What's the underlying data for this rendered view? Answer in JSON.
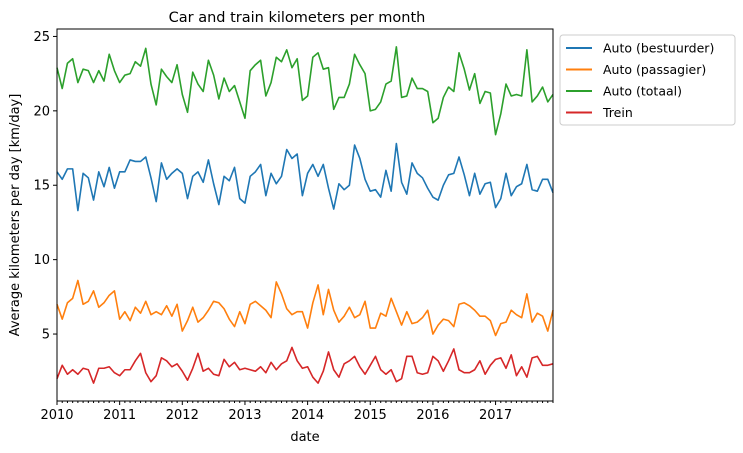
{
  "chart_data": {
    "type": "line",
    "title": "Car and train kilometers per month",
    "xlabel": "date",
    "ylabel": "Average kilometers per day [km/day]",
    "x_ticks": [
      "2010",
      "2011",
      "2012",
      "2013",
      "2014",
      "2015",
      "2016",
      "2017"
    ],
    "y_ticks": [
      5,
      10,
      15,
      20,
      25
    ],
    "xlim": [
      "2010-01",
      "2017-12"
    ],
    "ylim": [
      0.5,
      25.5
    ],
    "legend_position": "outside-top-right",
    "series": [
      {
        "name": "Auto (bestuurder)",
        "color": "#1f77b4",
        "values": [
          15.9,
          15.4,
          16.1,
          16.1,
          13.3,
          15.8,
          15.5,
          14.0,
          15.9,
          14.9,
          16.2,
          14.8,
          15.9,
          15.9,
          16.7,
          16.6,
          16.6,
          16.9,
          15.5,
          13.9,
          16.5,
          15.4,
          15.8,
          16.1,
          15.8,
          14.1,
          15.6,
          15.9,
          15.2,
          16.7,
          15.1,
          13.7,
          15.6,
          15.3,
          16.2,
          14.1,
          13.8,
          15.6,
          15.9,
          16.4,
          14.3,
          15.8,
          15.1,
          15.6,
          17.4,
          16.8,
          17.1,
          14.3,
          15.8,
          16.4,
          15.6,
          16.4,
          14.8,
          13.4,
          15.1,
          14.7,
          15.0,
          17.7,
          16.8,
          15.4,
          14.6,
          14.7,
          14.2,
          16.0,
          14.6,
          17.8,
          15.2,
          14.4,
          16.5,
          15.8,
          15.5,
          14.8,
          14.2,
          14.0,
          15.0,
          15.7,
          15.8,
          16.9,
          15.7,
          14.3,
          15.8,
          14.4,
          15.1,
          15.2,
          13.5,
          14.1,
          15.8,
          14.3,
          14.9,
          15.1,
          16.4,
          14.7,
          14.6,
          15.4,
          15.4,
          14.5
        ]
      },
      {
        "name": "Auto (passagier)",
        "color": "#ff7f0e",
        "values": [
          7.0,
          6.0,
          7.1,
          7.4,
          8.6,
          7.0,
          7.2,
          7.9,
          6.8,
          7.1,
          7.6,
          7.9,
          6.0,
          6.5,
          5.9,
          6.8,
          6.4,
          7.2,
          6.3,
          6.5,
          6.3,
          6.9,
          6.2,
          7.0,
          5.2,
          5.9,
          6.8,
          5.8,
          6.1,
          6.6,
          7.2,
          7.1,
          6.7,
          6.0,
          5.5,
          6.5,
          5.7,
          7.0,
          7.2,
          6.9,
          6.6,
          6.1,
          8.5,
          7.7,
          6.7,
          6.3,
          6.5,
          6.5,
          5.4,
          7.1,
          8.3,
          6.3,
          8.0,
          6.6,
          5.8,
          6.2,
          6.8,
          6.1,
          6.3,
          7.2,
          5.4,
          5.4,
          6.4,
          6.2,
          7.4,
          6.5,
          5.6,
          6.5,
          5.7,
          5.8,
          6.1,
          6.6,
          5.0,
          5.6,
          6.0,
          5.9,
          5.5,
          7.0,
          7.1,
          6.9,
          6.6,
          6.2,
          6.2,
          5.9,
          4.9,
          5.7,
          5.8,
          6.6,
          6.3,
          6.1,
          7.7,
          5.8,
          6.4,
          6.2,
          5.2,
          6.6
        ]
      },
      {
        "name": "Auto (totaal)",
        "color": "#2ca02c",
        "values": [
          22.9,
          21.5,
          23.2,
          23.5,
          21.9,
          22.8,
          22.7,
          21.9,
          22.7,
          22.0,
          23.8,
          22.7,
          21.9,
          22.4,
          22.5,
          23.3,
          23.0,
          24.2,
          21.8,
          20.4,
          22.8,
          22.3,
          21.9,
          23.1,
          21.1,
          19.9,
          22.6,
          21.8,
          21.3,
          23.4,
          22.4,
          20.8,
          22.2,
          21.3,
          21.7,
          20.6,
          19.5,
          22.7,
          23.1,
          23.4,
          21.0,
          21.9,
          23.6,
          23.3,
          24.1,
          22.9,
          23.5,
          20.7,
          21.0,
          23.6,
          23.9,
          22.8,
          22.9,
          20.1,
          20.9,
          20.9,
          21.8,
          23.8,
          23.1,
          22.5,
          20.0,
          20.1,
          20.6,
          21.8,
          22.0,
          24.3,
          20.9,
          21.0,
          22.2,
          21.5,
          21.5,
          21.3,
          19.2,
          19.5,
          20.9,
          21.6,
          21.3,
          23.9,
          22.8,
          21.4,
          22.5,
          20.5,
          21.3,
          21.2,
          18.4,
          19.8,
          21.8,
          21.0,
          21.1,
          21.0,
          24.1,
          20.6,
          21.0,
          21.6,
          20.6,
          21.1
        ]
      },
      {
        "name": "Trein",
        "color": "#d62728",
        "values": [
          2.0,
          2.9,
          2.3,
          2.6,
          2.3,
          2.7,
          2.6,
          1.7,
          2.7,
          2.7,
          2.8,
          2.4,
          2.2,
          2.6,
          2.6,
          3.2,
          3.7,
          2.4,
          1.8,
          2.2,
          3.4,
          3.2,
          2.8,
          3.0,
          2.5,
          1.9,
          2.7,
          3.7,
          2.5,
          2.7,
          2.3,
          2.2,
          3.3,
          2.8,
          3.1,
          2.6,
          2.7,
          2.6,
          2.5,
          2.8,
          2.4,
          3.1,
          2.6,
          3.0,
          3.2,
          4.1,
          3.2,
          2.7,
          2.8,
          2.1,
          1.7,
          2.5,
          3.8,
          2.6,
          2.1,
          3.0,
          3.2,
          3.5,
          2.8,
          2.3,
          2.9,
          3.5,
          2.6,
          2.3,
          2.6,
          1.8,
          2.0,
          3.5,
          3.5,
          2.4,
          2.3,
          2.4,
          3.5,
          3.2,
          2.5,
          3.2,
          4.0,
          2.6,
          2.4,
          2.4,
          2.6,
          3.2,
          2.3,
          2.9,
          3.3,
          3.4,
          2.7,
          3.6,
          2.2,
          2.8,
          2.1,
          3.4,
          3.5,
          2.9,
          2.9,
          3.0
        ]
      }
    ]
  }
}
